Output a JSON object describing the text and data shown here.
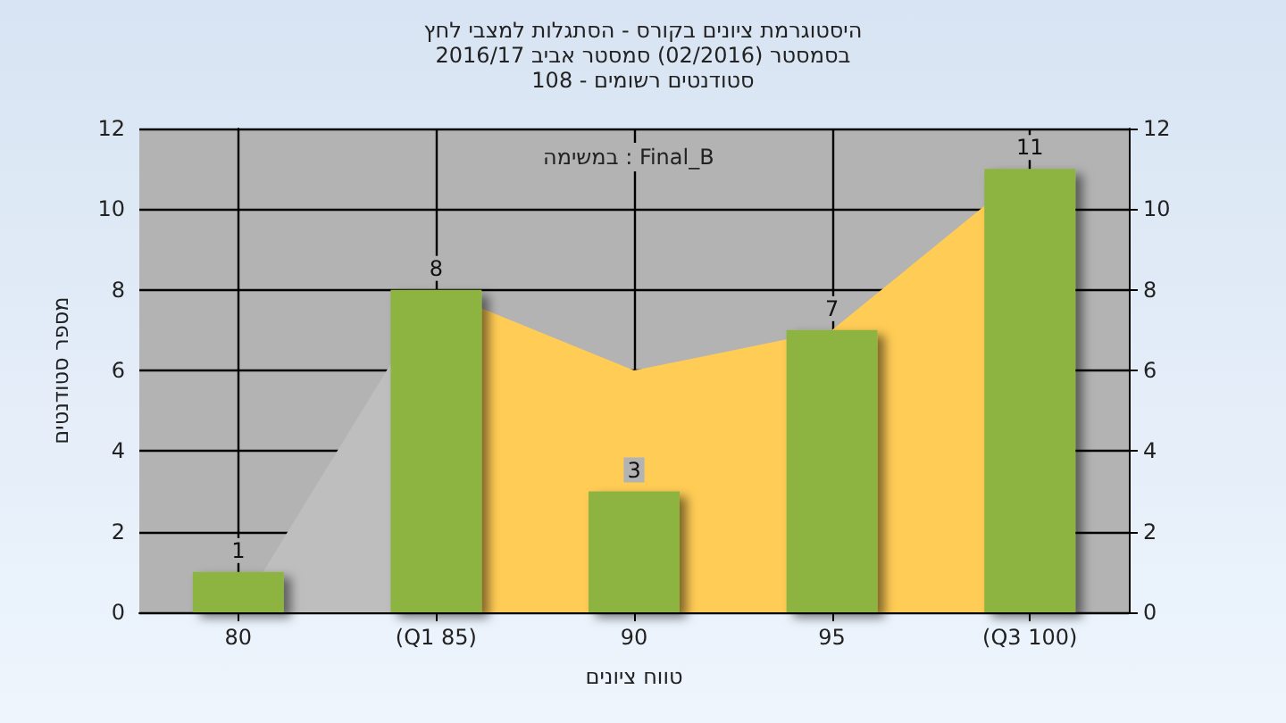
{
  "chart_data": {
    "type": "bar",
    "title": "היסטוגרמת ציונים בקורס - הסתגלות למצבי לחץ",
    "subtitle": "בסמסטר  (02/2016)  סמסטר אביב 2016/17\nסטודנטים רשומים - 108",
    "xlabel": "טווח ציונים",
    "ylabel": "מספר סטודנטים",
    "annotations": [
      "במשימה : Final_B"
    ],
    "categories": [
      "80",
      "(Q1 85)",
      "90",
      "95",
      "(Q3 100)"
    ],
    "series": [
      {
        "type": "area",
        "color": "#bebebe",
        "values": [
          0,
          8,
          null,
          null,
          null
        ]
      },
      {
        "type": "area",
        "color": "#ffcc55",
        "values": [
          null,
          8,
          6,
          7,
          11
        ]
      },
      {
        "color": "#8db440",
        "values": [
          1,
          8,
          3,
          7,
          11
        ],
        "value_labels": [
          "1",
          "8",
          "3",
          "7",
          "11"
        ]
      }
    ],
    "ylim": [
      0,
      12
    ],
    "yticks": [
      0,
      2,
      4,
      6,
      8,
      10,
      12
    ],
    "y2lim": [
      0,
      12
    ],
    "y2ticks": [
      0,
      2,
      4,
      6,
      8,
      10,
      12
    ],
    "grid": true
  }
}
